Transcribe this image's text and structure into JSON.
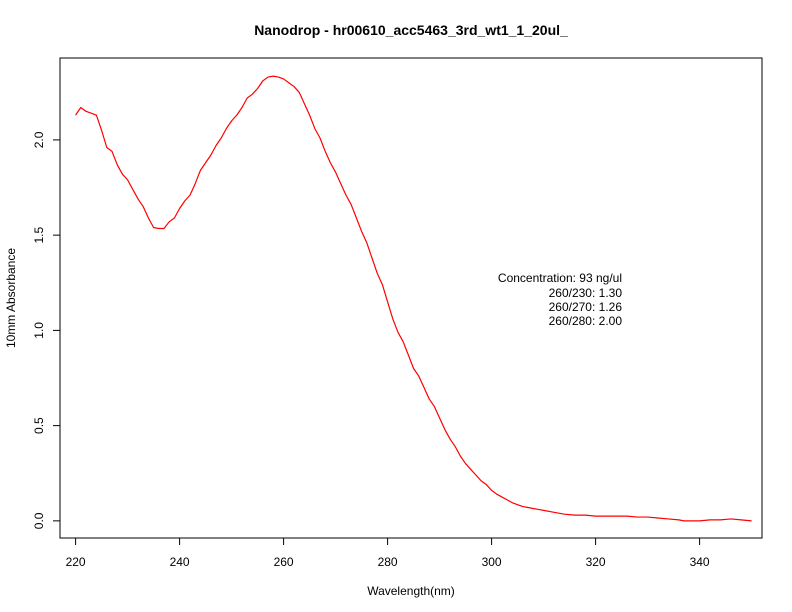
{
  "chart_data": {
    "type": "line",
    "title": "Nanodrop - hr00610_acc5463_3rd_wt1_1_20ul_",
    "xlabel": "Wavelength(nm)",
    "ylabel": "10mm Absorbance",
    "xlim": [
      217,
      352
    ],
    "ylim": [
      -0.09,
      2.43
    ],
    "xticks": [
      220,
      240,
      260,
      280,
      300,
      320,
      340
    ],
    "yticks": [
      0.0,
      0.5,
      1.0,
      1.5,
      2.0
    ],
    "xtick_labels": [
      "220",
      "240",
      "260",
      "280",
      "300",
      "320",
      "340"
    ],
    "ytick_labels": [
      "0.0",
      "0.5",
      "1.0",
      "1.5",
      "2.0"
    ],
    "grid": false,
    "series": [
      {
        "color": "#ff0000",
        "x": [
          220,
          221,
          222,
          223,
          224,
          225,
          226,
          227,
          228,
          229,
          230,
          231,
          232,
          233,
          234,
          235,
          236,
          237,
          238,
          239,
          240,
          241,
          242,
          243,
          244,
          245,
          246,
          247,
          248,
          249,
          250,
          251,
          252,
          253,
          254,
          255,
          256,
          257,
          258,
          259,
          260,
          261,
          262,
          263,
          264,
          265,
          266,
          267,
          268,
          269,
          270,
          271,
          272,
          273,
          274,
          275,
          276,
          277,
          278,
          279,
          280,
          281,
          282,
          283,
          284,
          285,
          286,
          287,
          288,
          289,
          290,
          291,
          292,
          293,
          294,
          295,
          296,
          297,
          298,
          299,
          300,
          301,
          302,
          303,
          304,
          305,
          306,
          307,
          308,
          309,
          310,
          312,
          314,
          316,
          318,
          320,
          322,
          324,
          326,
          328,
          330,
          332,
          334,
          336,
          337,
          338,
          340,
          342,
          344,
          346,
          348,
          350
        ],
        "y": [
          2.13,
          2.17,
          2.15,
          2.14,
          2.13,
          2.05,
          1.96,
          1.94,
          1.87,
          1.82,
          1.79,
          1.74,
          1.69,
          1.65,
          1.59,
          1.54,
          1.535,
          1.535,
          1.57,
          1.59,
          1.64,
          1.68,
          1.71,
          1.77,
          1.84,
          1.88,
          1.92,
          1.97,
          2.01,
          2.06,
          2.1,
          2.13,
          2.17,
          2.22,
          2.24,
          2.27,
          2.31,
          2.33,
          2.335,
          2.33,
          2.32,
          2.3,
          2.28,
          2.25,
          2.19,
          2.13,
          2.06,
          2.01,
          1.94,
          1.88,
          1.83,
          1.77,
          1.71,
          1.66,
          1.59,
          1.52,
          1.46,
          1.38,
          1.3,
          1.24,
          1.15,
          1.06,
          0.99,
          0.94,
          0.87,
          0.8,
          0.76,
          0.7,
          0.64,
          0.6,
          0.54,
          0.48,
          0.43,
          0.39,
          0.34,
          0.3,
          0.27,
          0.24,
          0.21,
          0.19,
          0.16,
          0.14,
          0.125,
          0.11,
          0.095,
          0.085,
          0.075,
          0.07,
          0.065,
          0.06,
          0.055,
          0.045,
          0.035,
          0.03,
          0.03,
          0.025,
          0.025,
          0.025,
          0.025,
          0.02,
          0.02,
          0.015,
          0.01,
          0.005,
          0.0,
          0.0,
          0.0,
          0.005,
          0.005,
          0.01,
          0.005,
          0.0
        ]
      }
    ],
    "annotations": [
      "Concentration: 93 ng/ul",
      "260/230: 1.30",
      "260/270: 1.26",
      "260/280: 2.00"
    ]
  }
}
